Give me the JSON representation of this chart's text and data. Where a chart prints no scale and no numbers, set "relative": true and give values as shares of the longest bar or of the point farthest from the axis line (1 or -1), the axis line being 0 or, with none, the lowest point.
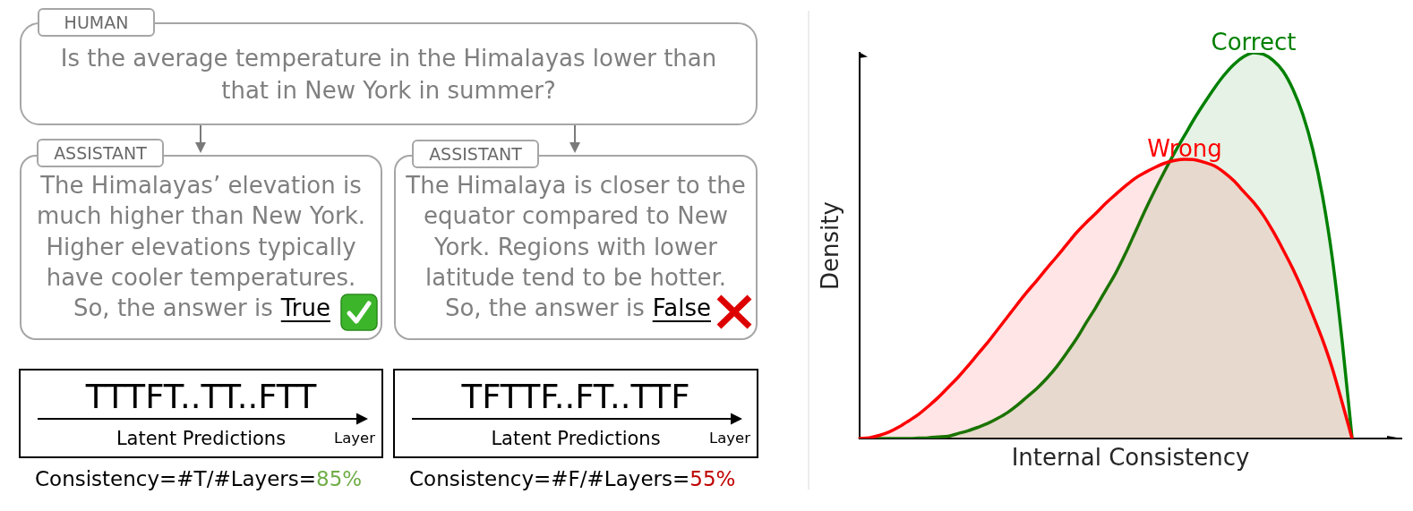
{
  "chart_data": [
    {
      "type": "other",
      "annotations": [
        "HUMAN",
        "Is the average temperature in the Himalayas lower than that in New York in summer?",
        "ASSISTANT",
        "The Himalayas’ elevation is much higher than New York. Higher elevations typically have cooler temperatures.",
        "So, the answer is",
        "True",
        "ASSISTANT",
        "The Himalaya is closer to the equator compared to New York. Regions with lower latitude tend to be hotter.",
        "So, the answer is",
        "False",
        "TTTFT..TT..FTT",
        "Latent Predictions",
        "Layer",
        "Consistency=#T/#Layers=",
        "85%",
        "TFTTF..FT..TTF",
        "Latent Predictions",
        "Layer",
        "Consistency=#F/#Layers=",
        "55%"
      ]
    },
    {
      "type": "area",
      "xlabel": "Internal Consistency",
      "ylabel": "Density",
      "relative": true,
      "marker": "none",
      "categories": [
        null,
        null,
        null,
        null,
        null,
        null,
        null,
        null,
        null,
        null,
        null,
        null,
        null,
        null,
        null,
        null,
        null,
        null,
        null,
        null,
        null,
        null,
        null,
        null,
        null,
        null,
        null,
        null,
        null,
        null,
        null,
        null,
        null,
        null,
        null,
        null,
        null,
        null,
        null,
        null,
        null,
        null,
        null,
        null,
        null,
        null,
        null,
        null,
        null,
        null,
        null,
        null,
        null,
        null,
        null,
        null
      ],
      "series": [
        {
          "name": "Correct",
          "color": "#008000",
          "values": [
            0,
            0,
            0,
            0,
            0,
            0,
            0.001,
            0.002,
            0.004,
            0.006,
            0.013,
            0.02,
            0.029,
            0.039,
            0.052,
            0.067,
            0.086,
            0.108,
            0.13,
            0.156,
            0.186,
            0.221,
            0.258,
            0.3,
            0.341,
            0.385,
            0.429,
            0.48,
            0.536,
            0.592,
            0.645,
            0.695,
            0.742,
            0.786,
            0.83,
            0.87,
            0.908,
            0.942,
            0.97,
            0.99,
            1,
            0.996,
            0.98,
            0.952,
            0.905,
            0.84,
            0.75,
            0.628,
            0.466,
            0.25,
            0,
            null,
            null,
            null,
            null,
            null
          ]
        },
        {
          "name": "Wrong",
          "color": "#ff0000",
          "values": [
            0,
            0.002,
            0.008,
            0.017,
            0.03,
            0.046,
            0.063,
            0.084,
            0.107,
            0.133,
            0.159,
            0.188,
            0.219,
            0.249,
            0.282,
            0.315,
            0.348,
            0.38,
            0.41,
            0.441,
            0.471,
            0.502,
            0.533,
            0.56,
            0.584,
            0.61,
            0.633,
            0.655,
            0.675,
            0.69,
            0.703,
            0.714,
            0.721,
            0.724,
            0.723,
            0.716,
            0.707,
            0.69,
            0.668,
            0.64,
            0.612,
            0.578,
            0.536,
            0.489,
            0.439,
            0.383,
            0.321,
            0.256,
            0.181,
            0.092,
            0,
            null,
            null,
            null,
            null,
            null
          ]
        }
      ]
    }
  ]
}
